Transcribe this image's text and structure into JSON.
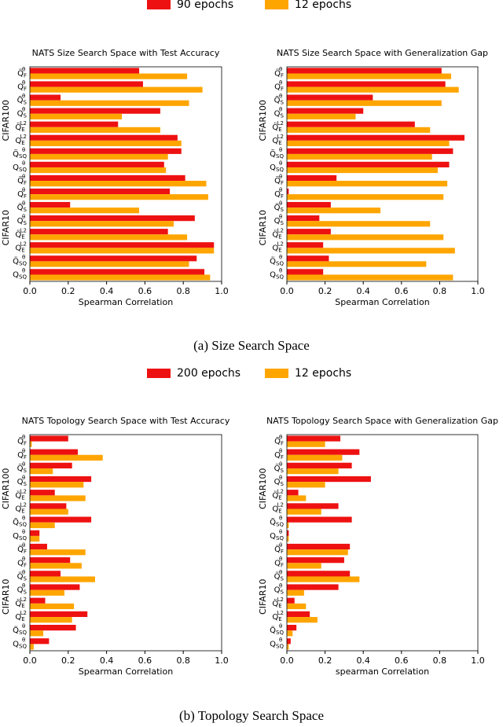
{
  "chart_data": [
    {
      "type": "barh",
      "title": "NATS Size Search Space with Test Accuracy",
      "x_label": "Spearman Correlation",
      "group_labels": [
        "CIFAR100",
        "CIFAR10"
      ],
      "categories": [
        {
          "base": "Q̈",
          "sub": "F",
          "sup": "θ"
        },
        {
          "base": "Q",
          "sub": "F",
          "sup": "θ"
        },
        {
          "base": "Q̈",
          "sub": "S",
          "sup": "θ"
        },
        {
          "base": "Q",
          "sub": "S",
          "sup": "θ"
        },
        {
          "base": "Q̈",
          "sub": "E",
          "sup": "L2"
        },
        {
          "base": "Q",
          "sub": "E",
          "sup": "L2"
        },
        {
          "base": "Q̈",
          "sub": "SQ",
          "sup": "θ"
        },
        {
          "base": "Q",
          "sub": "SQ",
          "sup": "θ"
        },
        {
          "base": "Q̈",
          "sub": "F",
          "sup": "θ"
        },
        {
          "base": "Q",
          "sub": "F",
          "sup": "θ"
        },
        {
          "base": "Q̈",
          "sub": "S",
          "sup": "θ"
        },
        {
          "base": "Q",
          "sub": "S",
          "sup": "θ"
        },
        {
          "base": "Q̈",
          "sub": "E",
          "sup": "L2"
        },
        {
          "base": "Q",
          "sub": "E",
          "sup": "L2"
        },
        {
          "base": "Q̈",
          "sub": "SQ",
          "sup": "θ"
        },
        {
          "base": "Q",
          "sub": "SQ",
          "sup": "θ"
        }
      ],
      "series": [
        {
          "name": "90 epochs",
          "color": "#ee1111",
          "values": [
            0.57,
            0.59,
            0.16,
            0.68,
            0.46,
            0.77,
            0.79,
            0.7,
            0.81,
            0.73,
            0.21,
            0.86,
            0.72,
            0.96,
            0.87,
            0.91
          ]
        },
        {
          "name": "12 epochs",
          "color": "#ffa500",
          "values": [
            0.82,
            0.9,
            0.83,
            0.48,
            0.68,
            0.79,
            0.72,
            0.71,
            0.92,
            0.93,
            0.57,
            0.75,
            0.82,
            0.96,
            0.83,
            0.94
          ]
        }
      ],
      "xlim": [
        0,
        1
      ],
      "xticks": [
        {
          "value": 0,
          "label": "0.0"
        },
        0.2,
        0.4,
        0.6,
        0.8,
        {
          "value": 1,
          "label": "1.0"
        }
      ]
    },
    {
      "type": "barh",
      "title": "NATS Size Search Space with Generalization Gap",
      "x_label": "Spearman Correlation",
      "group_labels": [
        "CIFAR100",
        "CIFAR10"
      ],
      "categories": [
        {
          "base": "Q̈",
          "sub": "F",
          "sup": "θ"
        },
        {
          "base": "Q",
          "sub": "F",
          "sup": "θ"
        },
        {
          "base": "Q̈",
          "sub": "S",
          "sup": "θ"
        },
        {
          "base": "Q",
          "sub": "S",
          "sup": "θ"
        },
        {
          "base": "Q̈",
          "sub": "E",
          "sup": "L2"
        },
        {
          "base": "Q",
          "sub": "E",
          "sup": "L2"
        },
        {
          "base": "Q̈",
          "sub": "SQ",
          "sup": "θ"
        },
        {
          "base": "Q",
          "sub": "SQ",
          "sup": "θ"
        },
        {
          "base": "Q̈",
          "sub": "F",
          "sup": "θ"
        },
        {
          "base": "Q",
          "sub": "F",
          "sup": "θ"
        },
        {
          "base": "Q̈",
          "sub": "S",
          "sup": "θ"
        },
        {
          "base": "Q",
          "sub": "S",
          "sup": "θ"
        },
        {
          "base": "Q̈",
          "sub": "E",
          "sup": "L2"
        },
        {
          "base": "Q",
          "sub": "E",
          "sup": "L2"
        },
        {
          "base": "Q̈",
          "sub": "SQ",
          "sup": "θ"
        },
        {
          "base": "Q",
          "sub": "SQ",
          "sup": "θ"
        }
      ],
      "series": [
        {
          "name": "90 epochs",
          "color": "#ee1111",
          "values": [
            0.81,
            0.83,
            0.45,
            0.4,
            0.67,
            0.93,
            0.87,
            0.85,
            0.26,
            0.01,
            0.23,
            0.17,
            0.23,
            0.19,
            0.22,
            0.19
          ]
        },
        {
          "name": "12 epochs",
          "color": "#ffa500",
          "values": [
            0.86,
            0.9,
            0.81,
            0.36,
            0.75,
            0.85,
            0.76,
            0.79,
            0.84,
            0.82,
            0.49,
            0.75,
            0.82,
            0.88,
            0.73,
            0.87
          ]
        }
      ],
      "xlim": [
        0,
        1
      ],
      "xticks": [
        {
          "value": 0,
          "label": "0.0"
        },
        0.2,
        0.4,
        0.6,
        0.8,
        {
          "value": 1,
          "label": "1.0"
        }
      ]
    },
    {
      "type": "barh",
      "title": "NATS Topology Search Space with Test Accuracy",
      "x_label": "Spearman Correlation",
      "group_labels": [
        "CIFAR100",
        "CIFAR10"
      ],
      "categories": [
        {
          "base": "Q̈",
          "sub": "F",
          "sup": "θ"
        },
        {
          "base": "Q",
          "sub": "F",
          "sup": "θ"
        },
        {
          "base": "Q̈",
          "sub": "S",
          "sup": "θ"
        },
        {
          "base": "Q",
          "sub": "S",
          "sup": "θ"
        },
        {
          "base": "Q̈",
          "sub": "E",
          "sup": "L2"
        },
        {
          "base": "Q",
          "sub": "E",
          "sup": "L2"
        },
        {
          "base": "Q̈",
          "sub": "SQ",
          "sup": "θ"
        },
        {
          "base": "Q",
          "sub": "SQ",
          "sup": "θ"
        },
        {
          "base": "Q̈",
          "sub": "F",
          "sup": "θ"
        },
        {
          "base": "Q",
          "sub": "F",
          "sup": "θ"
        },
        {
          "base": "Q̈",
          "sub": "S",
          "sup": "θ"
        },
        {
          "base": "Q",
          "sub": "S",
          "sup": "θ"
        },
        {
          "base": "Q̈",
          "sub": "E",
          "sup": "L2"
        },
        {
          "base": "Q",
          "sub": "E",
          "sup": "L2"
        },
        {
          "base": "Q̈",
          "sub": "SQ",
          "sup": "θ"
        },
        {
          "base": "Q",
          "sub": "SQ",
          "sup": "θ"
        }
      ],
      "series": [
        {
          "name": "200 epochs",
          "color": "#ee1111",
          "values": [
            0.2,
            0.25,
            0.22,
            0.32,
            0.13,
            0.19,
            0.32,
            0.05,
            0.09,
            0.21,
            0.16,
            0.26,
            0.08,
            0.3,
            0.24,
            0.1
          ]
        },
        {
          "name": "12 epochs",
          "color": "#ffa500",
          "values": [
            0.01,
            0.38,
            0.12,
            0.28,
            0.29,
            0.2,
            0.13,
            0.05,
            0.29,
            0.27,
            0.34,
            0.18,
            0.23,
            0.22,
            0.07,
            0.02
          ]
        }
      ],
      "xlim": [
        0,
        1
      ],
      "xticks": [
        {
          "value": 0,
          "label": "0.0"
        },
        0.2,
        0.4,
        0.6,
        0.8,
        {
          "value": 1,
          "label": "1.0"
        }
      ]
    },
    {
      "type": "barh",
      "title": "NATS Topology Search Space with Generalization Gap",
      "x_label": "spearman Correlation",
      "group_labels": [
        "CIFAR100",
        "CIFAR10"
      ],
      "categories": [
        {
          "base": "Q̈",
          "sub": "F",
          "sup": "θ"
        },
        {
          "base": "Q",
          "sub": "F",
          "sup": "θ"
        },
        {
          "base": "Q̈",
          "sub": "S",
          "sup": "θ"
        },
        {
          "base": "Q",
          "sub": "S",
          "sup": "θ"
        },
        {
          "base": "Q̈",
          "sub": "E",
          "sup": "L2"
        },
        {
          "base": "Q",
          "sub": "E",
          "sup": "L2"
        },
        {
          "base": "Q̈",
          "sub": "SQ",
          "sup": "θ"
        },
        {
          "base": "Q",
          "sub": "SQ",
          "sup": "θ"
        },
        {
          "base": "Q̈",
          "sub": "F",
          "sup": "θ"
        },
        {
          "base": "Q",
          "sub": "F",
          "sup": "θ"
        },
        {
          "base": "Q̈",
          "sub": "S",
          "sup": "θ"
        },
        {
          "base": "Q",
          "sub": "S",
          "sup": "θ"
        },
        {
          "base": "Q̈",
          "sub": "E",
          "sup": "L2"
        },
        {
          "base": "Q",
          "sub": "E",
          "sup": "L2"
        },
        {
          "base": "Q̈",
          "sub": "SQ",
          "sup": "θ"
        },
        {
          "base": "Q",
          "sub": "SQ",
          "sup": "θ"
        }
      ],
      "series": [
        {
          "name": "200 epochs",
          "color": "#ee1111",
          "values": [
            0.28,
            0.38,
            0.34,
            0.44,
            0.06,
            0.27,
            0.34,
            0.01,
            0.33,
            0.3,
            0.33,
            0.27,
            0.04,
            0.12,
            0.05,
            0.02
          ]
        },
        {
          "name": "12 epochs",
          "color": "#ffa500",
          "values": [
            0.2,
            0.29,
            0.27,
            0.2,
            0.1,
            0.18,
            0.01,
            0.01,
            0.32,
            0.18,
            0.38,
            0.09,
            0.1,
            0.16,
            0.03,
            0.01
          ]
        }
      ],
      "xlim": [
        0,
        1
      ],
      "xticks": [
        {
          "value": 0,
          "label": "0.0"
        },
        0.2,
        0.4,
        0.6,
        0.8,
        {
          "value": 1,
          "label": "1.0"
        }
      ]
    }
  ],
  "captions": [
    "(a)  Size Search Space",
    "(b)  Topology Search Space"
  ]
}
